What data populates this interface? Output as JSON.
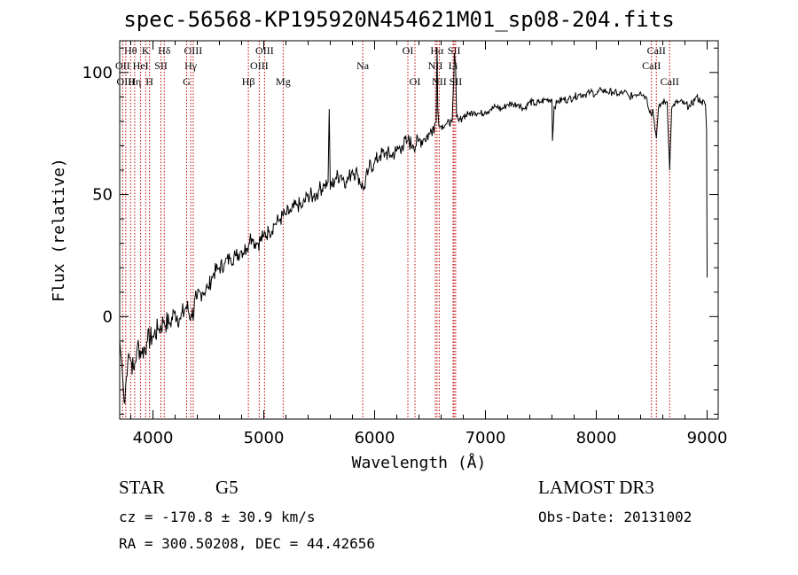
{
  "chart_data": {
    "type": "line",
    "title": "spec-56568-KP195920N454621M01_sp08-204.fits",
    "xlabel": "Wavelength (Å)",
    "ylabel": "Flux (relative)",
    "xlim": [
      3700,
      9100
    ],
    "ylim": [
      -42,
      113
    ],
    "xticks": [
      4000,
      5000,
      6000,
      7000,
      8000,
      9000
    ],
    "yticks": [
      0,
      50,
      100
    ],
    "series": [
      {
        "name": "spectrum",
        "x": [
          3700,
          3720,
          3740,
          3760,
          3780,
          3800,
          3830,
          3860,
          3900,
          3950,
          4000,
          4050,
          4100,
          4150,
          4200,
          4250,
          4300,
          4350,
          4400,
          4450,
          4500,
          4550,
          4600,
          4650,
          4700,
          4750,
          4800,
          4850,
          4870,
          4880,
          4900,
          4950,
          5000,
          5050,
          5100,
          5150,
          5200,
          5250,
          5300,
          5350,
          5400,
          5450,
          5500,
          5550,
          5580,
          5590,
          5600,
          5650,
          5700,
          5750,
          5800,
          5850,
          5900,
          5950,
          6000,
          6050,
          6100,
          6150,
          6200,
          6250,
          6300,
          6350,
          6400,
          6450,
          6500,
          6530,
          6555,
          6563,
          6570,
          6580,
          6600,
          6650,
          6700,
          6716,
          6720,
          6731,
          6740,
          6760,
          6800,
          6850,
          6900,
          6950,
          7000,
          7050,
          7100,
          7150,
          7200,
          7250,
          7300,
          7350,
          7400,
          7450,
          7500,
          7550,
          7600,
          7605,
          7620,
          7650,
          7700,
          7750,
          7800,
          7850,
          7900,
          7950,
          8000,
          8050,
          8100,
          8150,
          8200,
          8250,
          8300,
          8350,
          8400,
          8450,
          8498,
          8510,
          8542,
          8560,
          8600,
          8640,
          8662,
          8680,
          8700,
          8750,
          8800,
          8850,
          8900,
          8950,
          8985,
          8995,
          9000
        ],
        "values": [
          -10,
          -20,
          -35,
          -25,
          -15,
          -18,
          -22,
          -12,
          -15,
          -10,
          -8,
          -5,
          -2,
          -3,
          2,
          -1,
          4,
          0,
          8,
          10,
          12,
          18,
          20,
          22,
          24,
          25,
          27,
          28,
          30,
          34,
          31,
          30,
          33,
          35,
          38,
          40,
          42,
          43,
          46,
          45,
          50,
          49,
          52,
          54,
          55,
          85,
          52,
          57,
          58,
          55,
          60,
          58,
          52,
          61,
          63,
          66,
          67,
          66,
          68,
          70,
          72,
          70,
          72,
          73,
          75,
          78,
          80,
          110,
          85,
          78,
          78,
          79,
          80,
          100,
          108,
          102,
          82,
          80,
          82,
          83,
          84,
          83,
          84,
          85,
          86,
          85,
          87,
          87,
          87,
          85,
          88,
          87,
          88,
          89,
          89,
          72,
          86,
          88,
          89,
          89,
          90,
          91,
          91,
          92,
          91,
          93,
          92,
          92,
          91,
          92,
          90,
          91,
          92,
          90,
          82,
          85,
          73,
          85,
          88,
          88,
          60,
          85,
          87,
          88,
          87,
          86,
          90,
          88,
          87,
          76,
          16
        ]
      }
    ],
    "line_markers": [
      {
        "label": "Hθ",
        "wavelength": 3798,
        "row": 1
      },
      {
        "label": "OII",
        "wavelength": 3727,
        "row": 2
      },
      {
        "label": "OIII",
        "wavelength": 3755,
        "row": 3
      },
      {
        "label": "Hη",
        "wavelength": 3835,
        "row": 3
      },
      {
        "label": "K",
        "wavelength": 3934,
        "row": 1
      },
      {
        "label": "HeI",
        "wavelength": 3889,
        "row": 2
      },
      {
        "label": "H",
        "wavelength": 3969,
        "row": 3
      },
      {
        "label": "Hδ",
        "wavelength": 4102,
        "row": 1
      },
      {
        "label": "SII",
        "wavelength": 4072,
        "row": 2
      },
      {
        "label": "OIII",
        "wavelength": 4363,
        "row": 1
      },
      {
        "label": "Hγ",
        "wavelength": 4341,
        "row": 2
      },
      {
        "label": "G",
        "wavelength": 4304,
        "row": 3
      },
      {
        "label": "Hβ",
        "wavelength": 4861,
        "row": 3
      },
      {
        "label": "OIII",
        "wavelength": 5007,
        "row": 1
      },
      {
        "label": "OIII",
        "wavelength": 4959,
        "row": 2
      },
      {
        "label": "Mg",
        "wavelength": 5175,
        "row": 3
      },
      {
        "label": "Na",
        "wavelength": 5893,
        "row": 2
      },
      {
        "label": "OI",
        "wavelength": 6300,
        "row": 1
      },
      {
        "label": "OI",
        "wavelength": 6364,
        "row": 3
      },
      {
        "label": "Hα",
        "wavelength": 6563,
        "row": 1
      },
      {
        "label": "NII",
        "wavelength": 6548,
        "row": 2
      },
      {
        "label": "NII",
        "wavelength": 6583,
        "row": 3
      },
      {
        "label": "SII",
        "wavelength": 6717,
        "row": 1
      },
      {
        "label": "Li",
        "wavelength": 6708,
        "row": 2
      },
      {
        "label": "SII",
        "wavelength": 6731,
        "row": 3
      },
      {
        "label": "CaII",
        "wavelength": 8542,
        "row": 1
      },
      {
        "label": "CaII",
        "wavelength": 8498,
        "row": 2
      },
      {
        "label": "CaII",
        "wavelength": 8662,
        "row": 3
      }
    ]
  },
  "info": {
    "object_class": "STAR",
    "subclass": "G5",
    "survey": "LAMOST DR3",
    "cz": "cz = -170.8 ± 30.9 km/s",
    "obs_date": "Obs-Date: 20131002",
    "coords": "RA = 300.50208, DEC =  44.42656"
  },
  "colors": {
    "spectrum": "#000000",
    "marker_lines": "#c00000",
    "axes": "#000000"
  }
}
